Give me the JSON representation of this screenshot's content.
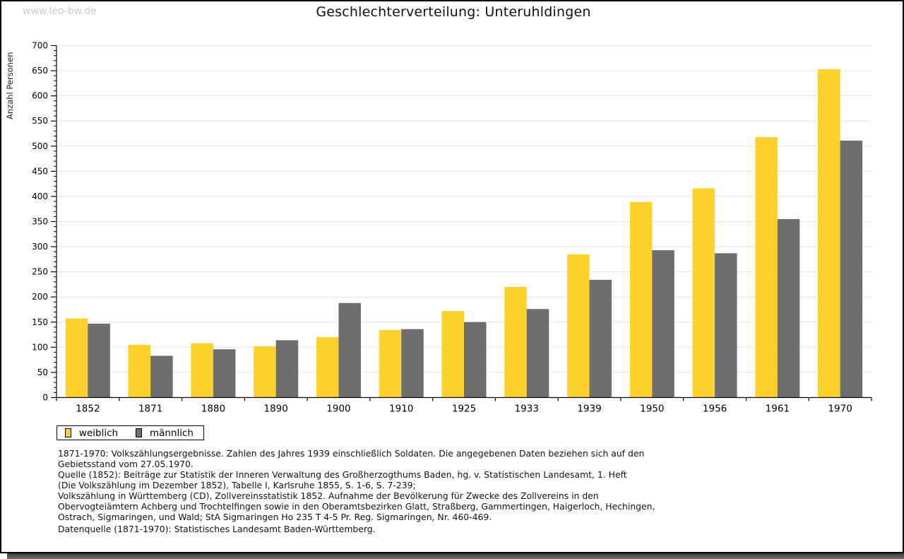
{
  "watermark": "www.leo-bw.de",
  "title": "Geschlechterverteilung: Unteruhldingen",
  "chart_data": {
    "type": "bar",
    "title": "Geschlechterverteilung: Unteruhldingen",
    "xlabel": "",
    "ylabel": "Anzahl Personen",
    "categories": [
      "1852",
      "1871",
      "1880",
      "1890",
      "1900",
      "1910",
      "1925",
      "1933",
      "1939",
      "1950",
      "1956",
      "1961",
      "1970"
    ],
    "series": [
      {
        "name": "weiblich",
        "color": "#FBD22B",
        "values": [
          157,
          105,
          108,
          102,
          120,
          134,
          172,
          220,
          285,
          389,
          416,
          518,
          653
        ]
      },
      {
        "name": "männlich",
        "color": "#6E6E6E",
        "values": [
          147,
          83,
          96,
          114,
          188,
          136,
          150,
          176,
          234,
          293,
          287,
          355,
          511
        ]
      }
    ],
    "ylim": [
      0,
      700
    ],
    "ytick_step": 50,
    "minor_tick_step": 10,
    "grid": true,
    "gridline_color": "#e3e3e3",
    "legend_position": "bottom-left"
  },
  "footnotes": {
    "lines": [
      "1871-1970: Volkszählungsergebnisse. Zahlen des Jahres 1939 einschließlich Soldaten. Die angegebenen Daten beziehen sich auf den",
      "Gebietsstand vom 27.05.1970.",
      "Quelle (1852): Beiträge zur Statistik der Inneren Verwaltung des Großherzogthums Baden, hg. v. Statistischen Landesamt, 1. Heft",
      "(Die Volkszählung im Dezember 1852), Tabelle I, Karlsruhe 1855, S. 1-6, S. 7-239;",
      "Volkszählung in Württemberg (CD), Zollvereinsstatistik 1852. Aufnahme der Bevölkerung für Zwecke des Zollvereins in den",
      "Obervogteiämtern Achberg und Trochtelfingen sowie in den Oberamtsbezirken Glatt, Straßberg, Gammertingen, Haigerloch, Hechingen,",
      "Ostrach, Sigmaringen, und Wald; StA Sigmaringen Ho 235 T 4-5 Pr. Reg. Sigmaringen, Nr. 460-469."
    ],
    "datasource": "Datenquelle (1871-1970): Statistisches Landesamt Baden-Württemberg."
  }
}
